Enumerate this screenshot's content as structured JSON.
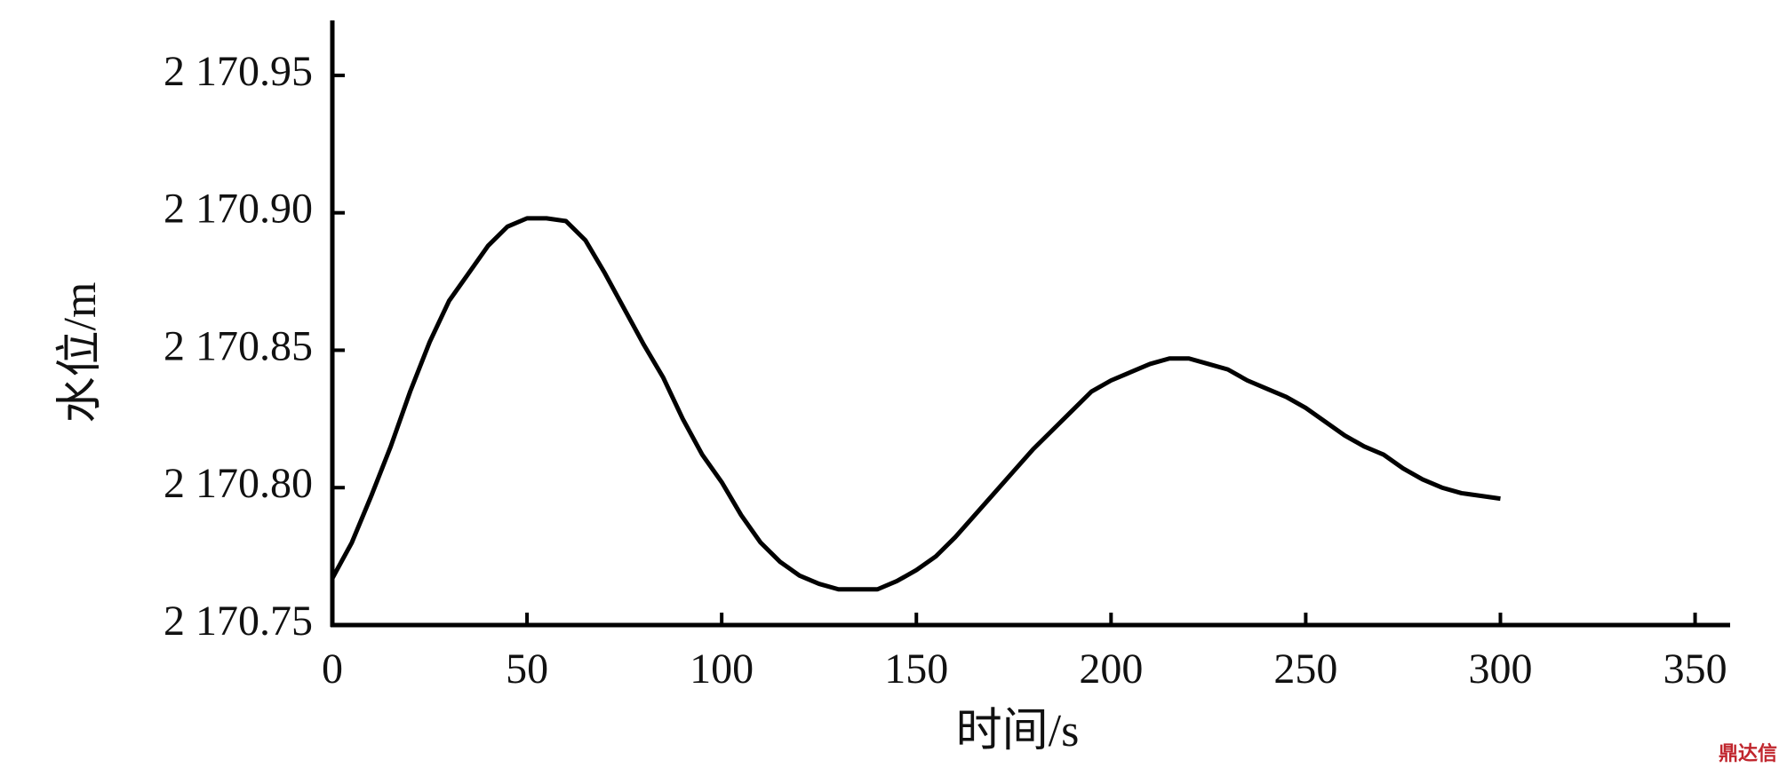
{
  "chart_data": {
    "type": "line",
    "x_label": "时间/s",
    "y_label": "水位/m",
    "watermark": "鼎达信",
    "x": [
      0,
      5,
      10,
      15,
      20,
      25,
      30,
      35,
      40,
      45,
      50,
      55,
      60,
      65,
      70,
      75,
      80,
      85,
      90,
      95,
      100,
      105,
      110,
      115,
      120,
      125,
      130,
      135,
      140,
      145,
      150,
      155,
      160,
      165,
      170,
      175,
      180,
      185,
      190,
      195,
      200,
      205,
      210,
      215,
      220,
      225,
      230,
      235,
      240,
      245,
      250,
      255,
      260,
      265,
      270,
      275,
      280,
      285,
      290,
      295,
      300
    ],
    "series": [
      {
        "color": "#000000",
        "values": [
          2170.767,
          2170.78,
          2170.797,
          2170.815,
          2170.835,
          2170.853,
          2170.868,
          2170.878,
          2170.888,
          2170.895,
          2170.898,
          2170.898,
          2170.897,
          2170.89,
          2170.878,
          2170.865,
          2170.852,
          2170.84,
          2170.825,
          2170.812,
          2170.802,
          2170.79,
          2170.78,
          2170.773,
          2170.768,
          2170.765,
          2170.763,
          2170.763,
          2170.763,
          2170.766,
          2170.77,
          2170.775,
          2170.782,
          2170.79,
          2170.798,
          2170.806,
          2170.814,
          2170.821,
          2170.828,
          2170.835,
          2170.839,
          2170.842,
          2170.845,
          2170.847,
          2170.847,
          2170.845,
          2170.843,
          2170.839,
          2170.836,
          2170.833,
          2170.829,
          2170.824,
          2170.819,
          2170.815,
          2170.812,
          2170.807,
          2170.803,
          2170.8,
          2170.798,
          2170.797,
          2170.796
        ]
      }
    ],
    "xlim": [
      0,
      359
    ],
    "xticks": [
      0,
      50,
      100,
      150,
      200,
      250,
      300,
      350
    ],
    "ylim": [
      2170.75,
      2170.97
    ],
    "yticks": [
      {
        "value": 2170.75,
        "label": "2 170.75"
      },
      {
        "value": 2170.8,
        "label": "2 170.80"
      },
      {
        "value": 2170.85,
        "label": "2 170.85"
      },
      {
        "value": 2170.9,
        "label": "2 170.90"
      },
      {
        "value": 2170.95,
        "label": "2 170.95"
      }
    ]
  }
}
